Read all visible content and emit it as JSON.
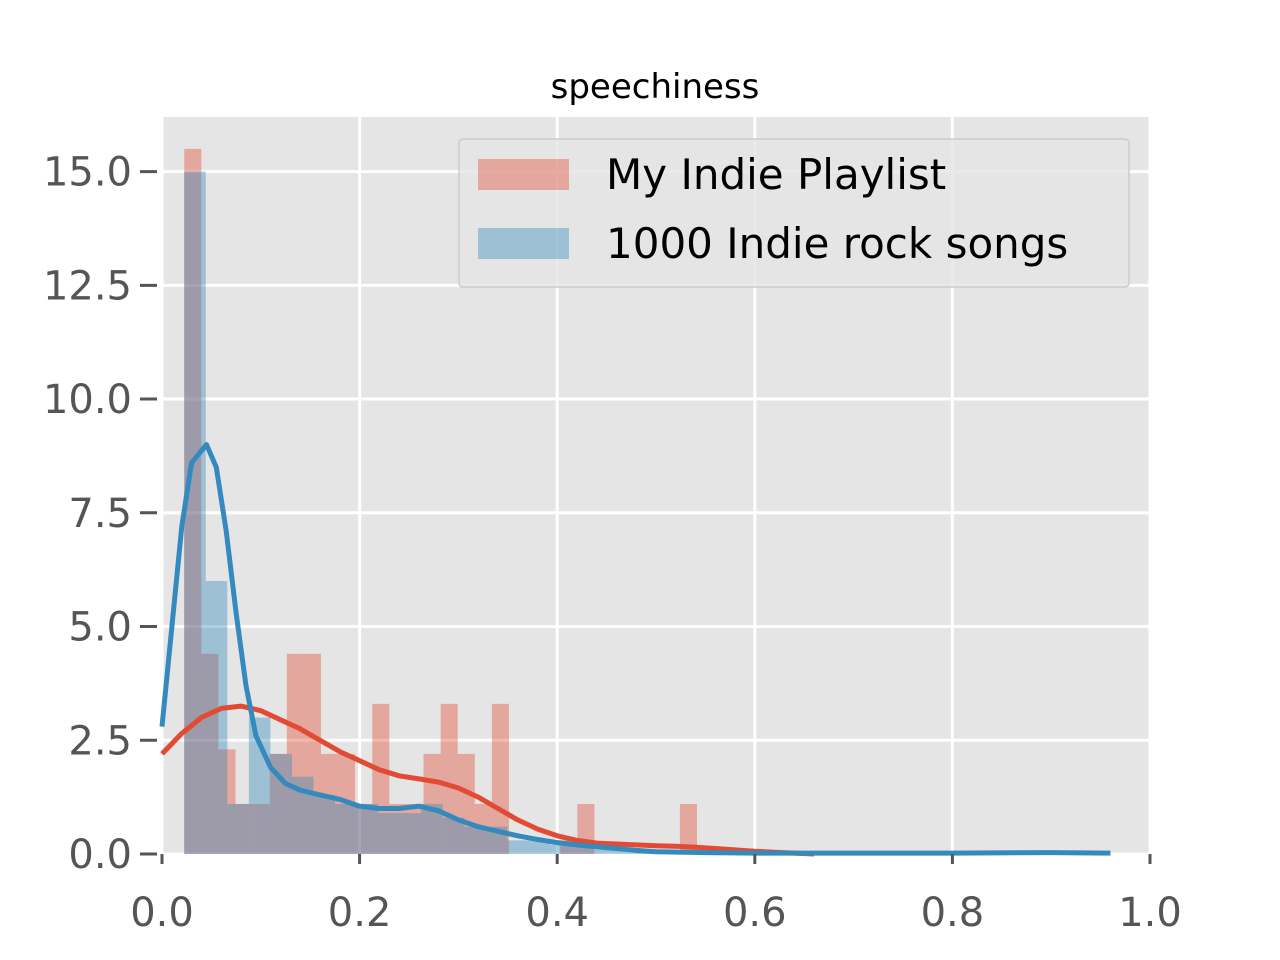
{
  "chart_data": {
    "type": "histogram",
    "title": "speechiness",
    "xlabel": "",
    "ylabel": "",
    "xlim": [
      0.0,
      1.0
    ],
    "ylim": [
      0,
      16.2
    ],
    "grid": true,
    "legend_position": "top-right",
    "x_ticks": [
      "0.0",
      "0.2",
      "0.4",
      "0.6",
      "0.8",
      "1.0"
    ],
    "y_ticks": [
      "0.0",
      "2.5",
      "5.0",
      "7.5",
      "10.0",
      "12.5",
      "15.0"
    ],
    "bin_width": 0.0173,
    "series": [
      {
        "name": "My Indie Playlist",
        "color": "#E24A33",
        "bins": [
          {
            "x": 0.0225,
            "h": 15.5
          },
          {
            "x": 0.0398,
            "h": 4.4
          },
          {
            "x": 0.0571,
            "h": 2.3
          },
          {
            "x": 0.0744,
            "h": 1.1
          },
          {
            "x": 0.0917,
            "h": 1.1
          },
          {
            "x": 0.109,
            "h": 2.2
          },
          {
            "x": 0.1263,
            "h": 4.4
          },
          {
            "x": 0.1436,
            "h": 4.4
          },
          {
            "x": 0.1609,
            "h": 2.2
          },
          {
            "x": 0.1782,
            "h": 2.2
          },
          {
            "x": 0.1955,
            "h": 1.1
          },
          {
            "x": 0.2128,
            "h": 3.3
          },
          {
            "x": 0.2301,
            "h": 1.1
          },
          {
            "x": 0.2474,
            "h": 1.1
          },
          {
            "x": 0.2647,
            "h": 2.2
          },
          {
            "x": 0.282,
            "h": 3.3
          },
          {
            "x": 0.2993,
            "h": 2.2
          },
          {
            "x": 0.3166,
            "h": 1.1
          },
          {
            "x": 0.3339,
            "h": 3.3
          },
          {
            "x": 0.4031,
            "h": 0.3
          },
          {
            "x": 0.4204,
            "h": 1.1
          },
          {
            "x": 0.5242,
            "h": 1.1
          }
        ],
        "kde": [
          [
            0.0,
            2.2
          ],
          [
            0.02,
            2.65
          ],
          [
            0.04,
            3.0
          ],
          [
            0.06,
            3.2
          ],
          [
            0.08,
            3.25
          ],
          [
            0.1,
            3.15
          ],
          [
            0.12,
            2.95
          ],
          [
            0.14,
            2.75
          ],
          [
            0.16,
            2.5
          ],
          [
            0.18,
            2.25
          ],
          [
            0.2,
            2.05
          ],
          [
            0.22,
            1.85
          ],
          [
            0.24,
            1.72
          ],
          [
            0.26,
            1.65
          ],
          [
            0.28,
            1.58
          ],
          [
            0.3,
            1.45
          ],
          [
            0.32,
            1.25
          ],
          [
            0.34,
            1.0
          ],
          [
            0.36,
            0.75
          ],
          [
            0.38,
            0.55
          ],
          [
            0.4,
            0.4
          ],
          [
            0.42,
            0.3
          ],
          [
            0.44,
            0.24
          ],
          [
            0.46,
            0.22
          ],
          [
            0.48,
            0.2
          ],
          [
            0.5,
            0.18
          ],
          [
            0.52,
            0.17
          ],
          [
            0.54,
            0.15
          ],
          [
            0.56,
            0.12
          ],
          [
            0.58,
            0.09
          ],
          [
            0.6,
            0.06
          ],
          [
            0.62,
            0.04
          ],
          [
            0.64,
            0.02
          ],
          [
            0.66,
            0.0
          ]
        ]
      },
      {
        "name": "1000 Indie rock songs",
        "color": "#348ABD",
        "bins": [
          {
            "x": 0.0225,
            "h": 15.0
          },
          {
            "x": 0.0443,
            "h": 6.0
          },
          {
            "x": 0.0661,
            "h": 1.1
          },
          {
            "x": 0.0879,
            "h": 3.0
          },
          {
            "x": 0.1097,
            "h": 2.2
          },
          {
            "x": 0.1315,
            "h": 1.7
          },
          {
            "x": 0.1533,
            "h": 1.3
          },
          {
            "x": 0.1751,
            "h": 1.1
          },
          {
            "x": 0.1969,
            "h": 1.1
          },
          {
            "x": 0.2187,
            "h": 0.9
          },
          {
            "x": 0.2405,
            "h": 0.9
          },
          {
            "x": 0.2623,
            "h": 1.1
          },
          {
            "x": 0.2841,
            "h": 0.8
          },
          {
            "x": 0.3059,
            "h": 0.6
          },
          {
            "x": 0.3277,
            "h": 0.6
          },
          {
            "x": 0.3495,
            "h": 0.3
          },
          {
            "x": 0.3713,
            "h": 0.3
          },
          {
            "x": 0.3931,
            "h": 0.2
          },
          {
            "x": 0.4149,
            "h": 0.2
          },
          {
            "x": 0.4367,
            "h": 0.1
          },
          {
            "x": 0.4585,
            "h": 0.1
          },
          {
            "x": 0.4803,
            "h": 0.05
          },
          {
            "x": 0.5021,
            "h": 0.05
          }
        ],
        "kde": [
          [
            0.0,
            2.8
          ],
          [
            0.01,
            5.0
          ],
          [
            0.02,
            7.2
          ],
          [
            0.03,
            8.6
          ],
          [
            0.045,
            9.0
          ],
          [
            0.055,
            8.5
          ],
          [
            0.065,
            7.1
          ],
          [
            0.075,
            5.3
          ],
          [
            0.085,
            3.7
          ],
          [
            0.095,
            2.6
          ],
          [
            0.11,
            1.9
          ],
          [
            0.125,
            1.55
          ],
          [
            0.14,
            1.4
          ],
          [
            0.16,
            1.3
          ],
          [
            0.18,
            1.2
          ],
          [
            0.2,
            1.05
          ],
          [
            0.22,
            1.0
          ],
          [
            0.24,
            1.0
          ],
          [
            0.26,
            1.05
          ],
          [
            0.28,
            0.95
          ],
          [
            0.3,
            0.75
          ],
          [
            0.32,
            0.6
          ],
          [
            0.34,
            0.5
          ],
          [
            0.36,
            0.4
          ],
          [
            0.38,
            0.32
          ],
          [
            0.4,
            0.25
          ],
          [
            0.42,
            0.2
          ],
          [
            0.44,
            0.16
          ],
          [
            0.46,
            0.12
          ],
          [
            0.48,
            0.08
          ],
          [
            0.5,
            0.05
          ],
          [
            0.55,
            0.03
          ],
          [
            0.6,
            0.02
          ],
          [
            0.7,
            0.02
          ],
          [
            0.8,
            0.02
          ],
          [
            0.9,
            0.03
          ],
          [
            0.96,
            0.02
          ]
        ]
      }
    ]
  }
}
